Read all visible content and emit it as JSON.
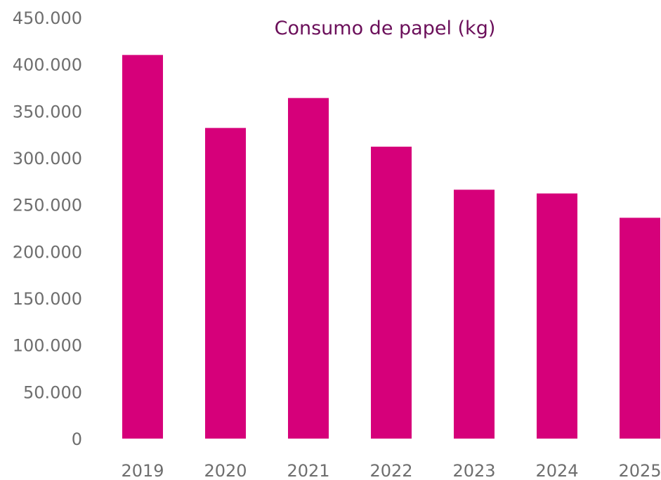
{
  "chart_data": {
    "type": "bar",
    "title": "Consumo de papel (kg)",
    "xlabel": "",
    "ylabel": "",
    "categories": [
      "2019",
      "2020",
      "2021",
      "2022",
      "2023",
      "2024",
      "2025"
    ],
    "values": [
      410000,
      332000,
      364000,
      312000,
      266000,
      262000,
      236000
    ],
    "ylim": [
      0,
      450000
    ],
    "yticks": [
      0,
      50000,
      100000,
      150000,
      200000,
      250000,
      300000,
      350000,
      400000,
      450000
    ],
    "ytick_labels": [
      "0",
      "50.000",
      "100.000",
      "150.000",
      "200.000",
      "250.000",
      "300.000",
      "350.000",
      "400.000",
      "450.000"
    ],
    "grid": false,
    "legend": "none",
    "bar_color": "#d6007a",
    "title_color": "#6b0f5a"
  }
}
